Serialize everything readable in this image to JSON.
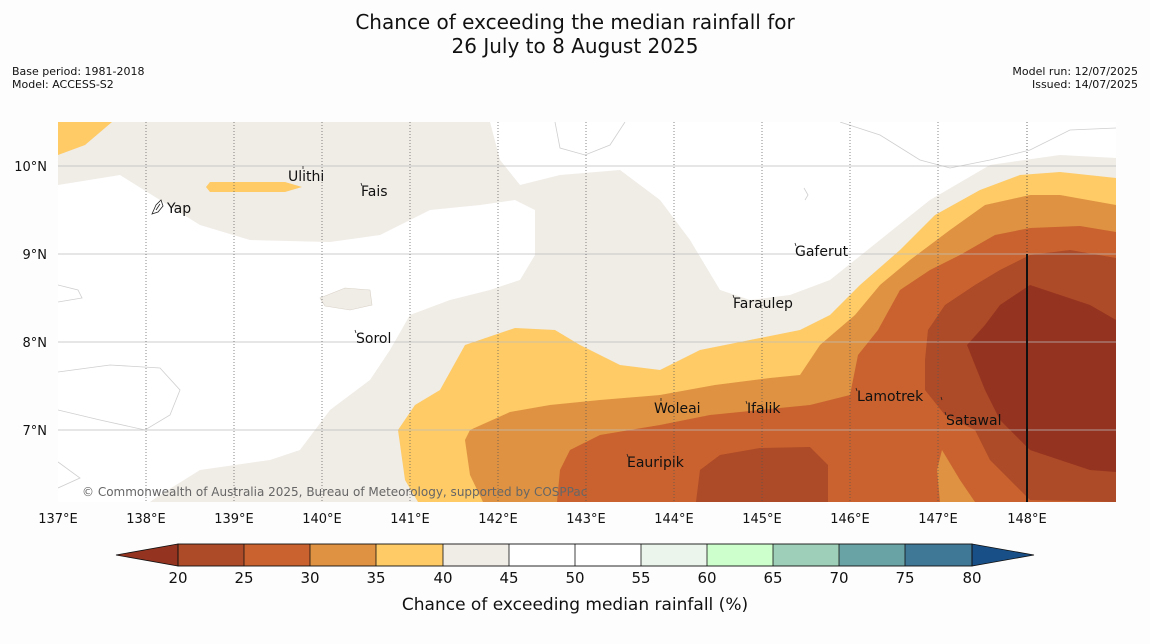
{
  "title": {
    "line1": "Chance of exceeding the median rainfall for",
    "line2": "26 July to 8 August 2025"
  },
  "meta": {
    "base_period": "Base period: 1981-2018",
    "model": "Model: ACCESS-S2",
    "model_run": "Model run: 12/07/2025",
    "issued": "Issued: 14/07/2025"
  },
  "map": {
    "lon_ticks": [
      "137°E",
      "138°E",
      "139°E",
      "140°E",
      "141°E",
      "142°E",
      "143°E",
      "144°E",
      "145°E",
      "146°E",
      "147°E",
      "148°E"
    ],
    "lat_ticks": [
      "10°N",
      "9°N",
      "8°N",
      "7°N"
    ],
    "places": [
      "Yap",
      "Ulithi",
      "Fais",
      "Sorol",
      "Gaferut",
      "Faraulep",
      "Woleai",
      "Ifalik",
      "Lamotrek",
      "Satawal",
      "Eauripik"
    ],
    "copyright": "© Commonwealth of Australia 2025, Bureau of Meteorology, supported by COSPPac"
  },
  "colorbar": {
    "label": "Chance of exceeding median rainfall (%)",
    "ticks": [
      "20",
      "25",
      "30",
      "35",
      "40",
      "45",
      "50",
      "55",
      "60",
      "65",
      "70",
      "75",
      "80"
    ],
    "colors": {
      "below20": "#943320",
      "c20_25": "#ad4a27",
      "c25_30": "#c9622f",
      "c30_35": "#df9241",
      "c35_40": "#fecb66",
      "c40_45": "#f0ece6",
      "c45_55": "#ffffff",
      "c55_60": "#ebf5eb",
      "c60_65": "#ccffcc",
      "c65_70": "#9ecfb8",
      "c70_75": "#6aa3a5",
      "c75_80": "#3f7797",
      "above80": "#194f87"
    }
  }
}
